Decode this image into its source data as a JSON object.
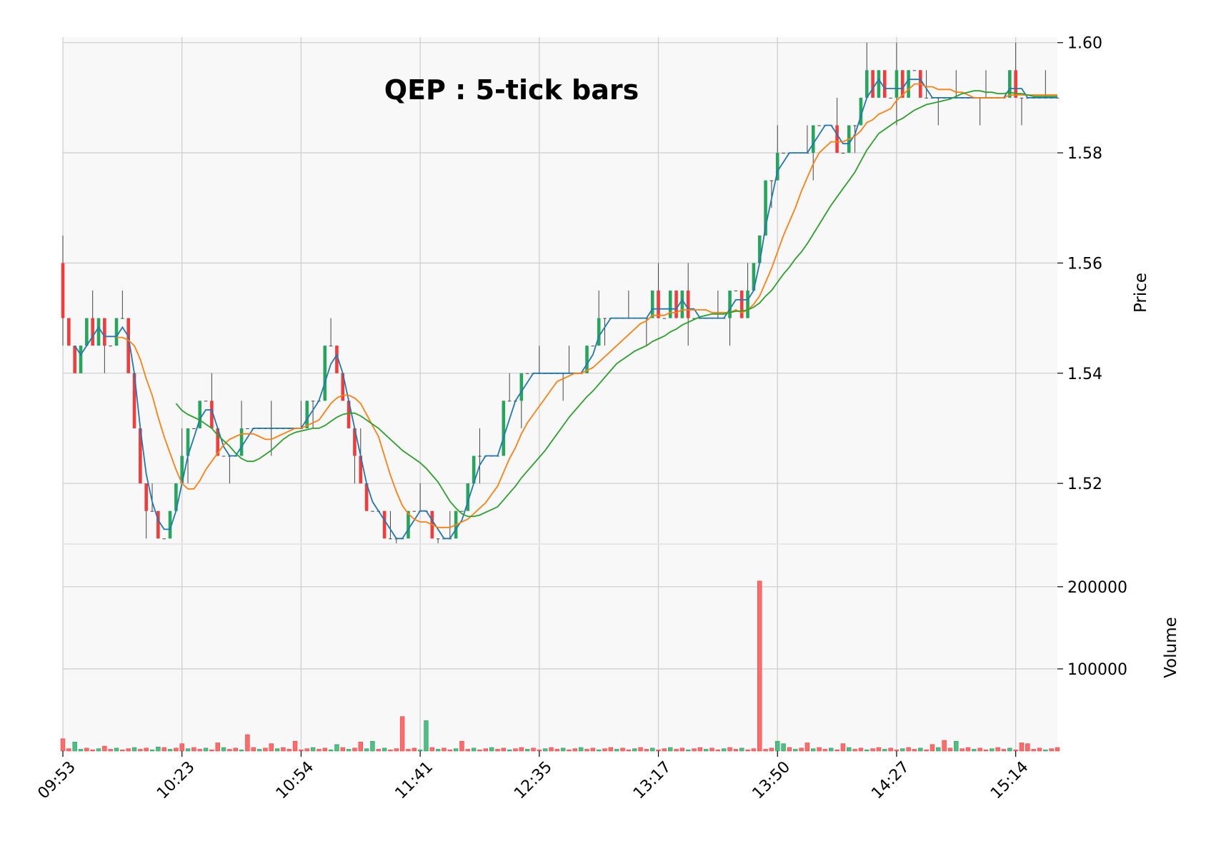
{
  "chart_data": {
    "type": "candlestick",
    "title": "QEP : 5-tick bars",
    "price_panel": {
      "ylabel": "Price",
      "ylim": [
        1.509,
        1.601
      ],
      "yticks": [
        1.52,
        1.54,
        1.56,
        1.58,
        1.6
      ],
      "ytick_labels": [
        "1.52",
        "1.54",
        "1.56",
        "1.58",
        "1.60"
      ]
    },
    "volume_panel": {
      "ylabel": "Volume",
      "ylim": [
        0,
        252000
      ],
      "yticks": [
        100000,
        200000
      ],
      "ytick_labels": [
        "100000",
        "200000"
      ]
    },
    "x_count": 168,
    "xtick_index": [
      0,
      20,
      40,
      60,
      80,
      100,
      120,
      140,
      160
    ],
    "xtick_labels": [
      "09:53",
      "10:23",
      "10:54",
      "11:41",
      "12:35",
      "13:17",
      "13:50",
      "14:27",
      "15:14"
    ],
    "colors": {
      "up": "#26a65b",
      "down": "#f23b3b",
      "doji": "#444444",
      "volume_up": "#4dbe84",
      "volume_down": "#ff6b6b",
      "ma_fast": "#1f77b4",
      "ma_mid": "#ff7f0e",
      "ma_slow": "#2ca02c",
      "panel_bg": "#f8f8f8",
      "grid": "#d0d0d0"
    },
    "anchors": [
      [
        0,
        1.55
      ],
      [
        2,
        1.54
      ],
      [
        4,
        1.55
      ],
      [
        8,
        1.545
      ],
      [
        10,
        1.55
      ],
      [
        12,
        1.53
      ],
      [
        14,
        1.515
      ],
      [
        17,
        1.51
      ],
      [
        19,
        1.52
      ],
      [
        21,
        1.53
      ],
      [
        24,
        1.535
      ],
      [
        26,
        1.525
      ],
      [
        28,
        1.525
      ],
      [
        31,
        1.53
      ],
      [
        35,
        1.53
      ],
      [
        40,
        1.53
      ],
      [
        42,
        1.535
      ],
      [
        45,
        1.545
      ],
      [
        48,
        1.53
      ],
      [
        50,
        1.52
      ],
      [
        53,
        1.515
      ],
      [
        55,
        1.51
      ],
      [
        58,
        1.515
      ],
      [
        60,
        1.515
      ],
      [
        62,
        1.512
      ],
      [
        64,
        1.51
      ],
      [
        66,
        1.512
      ],
      [
        68,
        1.52
      ],
      [
        70,
        1.525
      ],
      [
        72,
        1.525
      ],
      [
        75,
        1.535
      ],
      [
        78,
        1.54
      ],
      [
        84,
        1.54
      ],
      [
        86,
        1.54
      ],
      [
        88,
        1.545
      ],
      [
        90,
        1.55
      ],
      [
        94,
        1.55
      ],
      [
        97,
        1.55
      ],
      [
        99,
        1.552
      ],
      [
        104,
        1.552
      ],
      [
        106,
        1.55
      ],
      [
        110,
        1.55
      ],
      [
        112,
        1.555
      ],
      [
        114,
        1.55
      ],
      [
        116,
        1.56
      ],
      [
        118,
        1.575
      ],
      [
        120,
        1.58
      ],
      [
        124,
        1.58
      ],
      [
        126,
        1.585
      ],
      [
        128,
        1.585
      ],
      [
        130,
        1.58
      ],
      [
        132,
        1.585
      ],
      [
        134,
        1.59
      ],
      [
        136,
        1.593
      ],
      [
        138,
        1.59
      ],
      [
        140,
        1.593
      ],
      [
        143,
        1.593
      ],
      [
        145,
        1.59
      ],
      [
        150,
        1.59
      ],
      [
        155,
        1.59
      ],
      [
        158,
        1.592
      ],
      [
        160,
        1.59
      ],
      [
        163,
        1.59
      ],
      [
        167,
        1.59
      ]
    ],
    "volume_spikes": [
      [
        0,
        15000,
        "down"
      ],
      [
        2,
        11000,
        "up"
      ],
      [
        7,
        6000,
        "down"
      ],
      [
        16,
        5000,
        "up"
      ],
      [
        20,
        9000,
        "down"
      ],
      [
        26,
        10000,
        "down"
      ],
      [
        31,
        20000,
        "down"
      ],
      [
        35,
        9000,
        "down"
      ],
      [
        39,
        12000,
        "down"
      ],
      [
        46,
        8000,
        "up"
      ],
      [
        50,
        11000,
        "down"
      ],
      [
        52,
        12000,
        "up"
      ],
      [
        57,
        42000,
        "down"
      ],
      [
        61,
        37000,
        "up"
      ],
      [
        67,
        12000,
        "down"
      ],
      [
        120,
        12000,
        "up"
      ],
      [
        121,
        9000,
        "up"
      ],
      [
        125,
        10000,
        "down"
      ],
      [
        131,
        9000,
        "down"
      ],
      [
        146,
        8000,
        "down"
      ],
      [
        148,
        13000,
        "down"
      ],
      [
        150,
        12000,
        "up"
      ],
      [
        161,
        10000,
        "down"
      ],
      [
        162,
        9000,
        "down"
      ]
    ],
    "volume_big_spike": [
      117,
      207000,
      "down"
    ],
    "moving_averages": [
      {
        "window": 3,
        "color_key": "ma_fast"
      },
      {
        "window": 10,
        "color_key": "ma_mid"
      },
      {
        "window": 20,
        "color_key": "ma_slow"
      }
    ]
  }
}
